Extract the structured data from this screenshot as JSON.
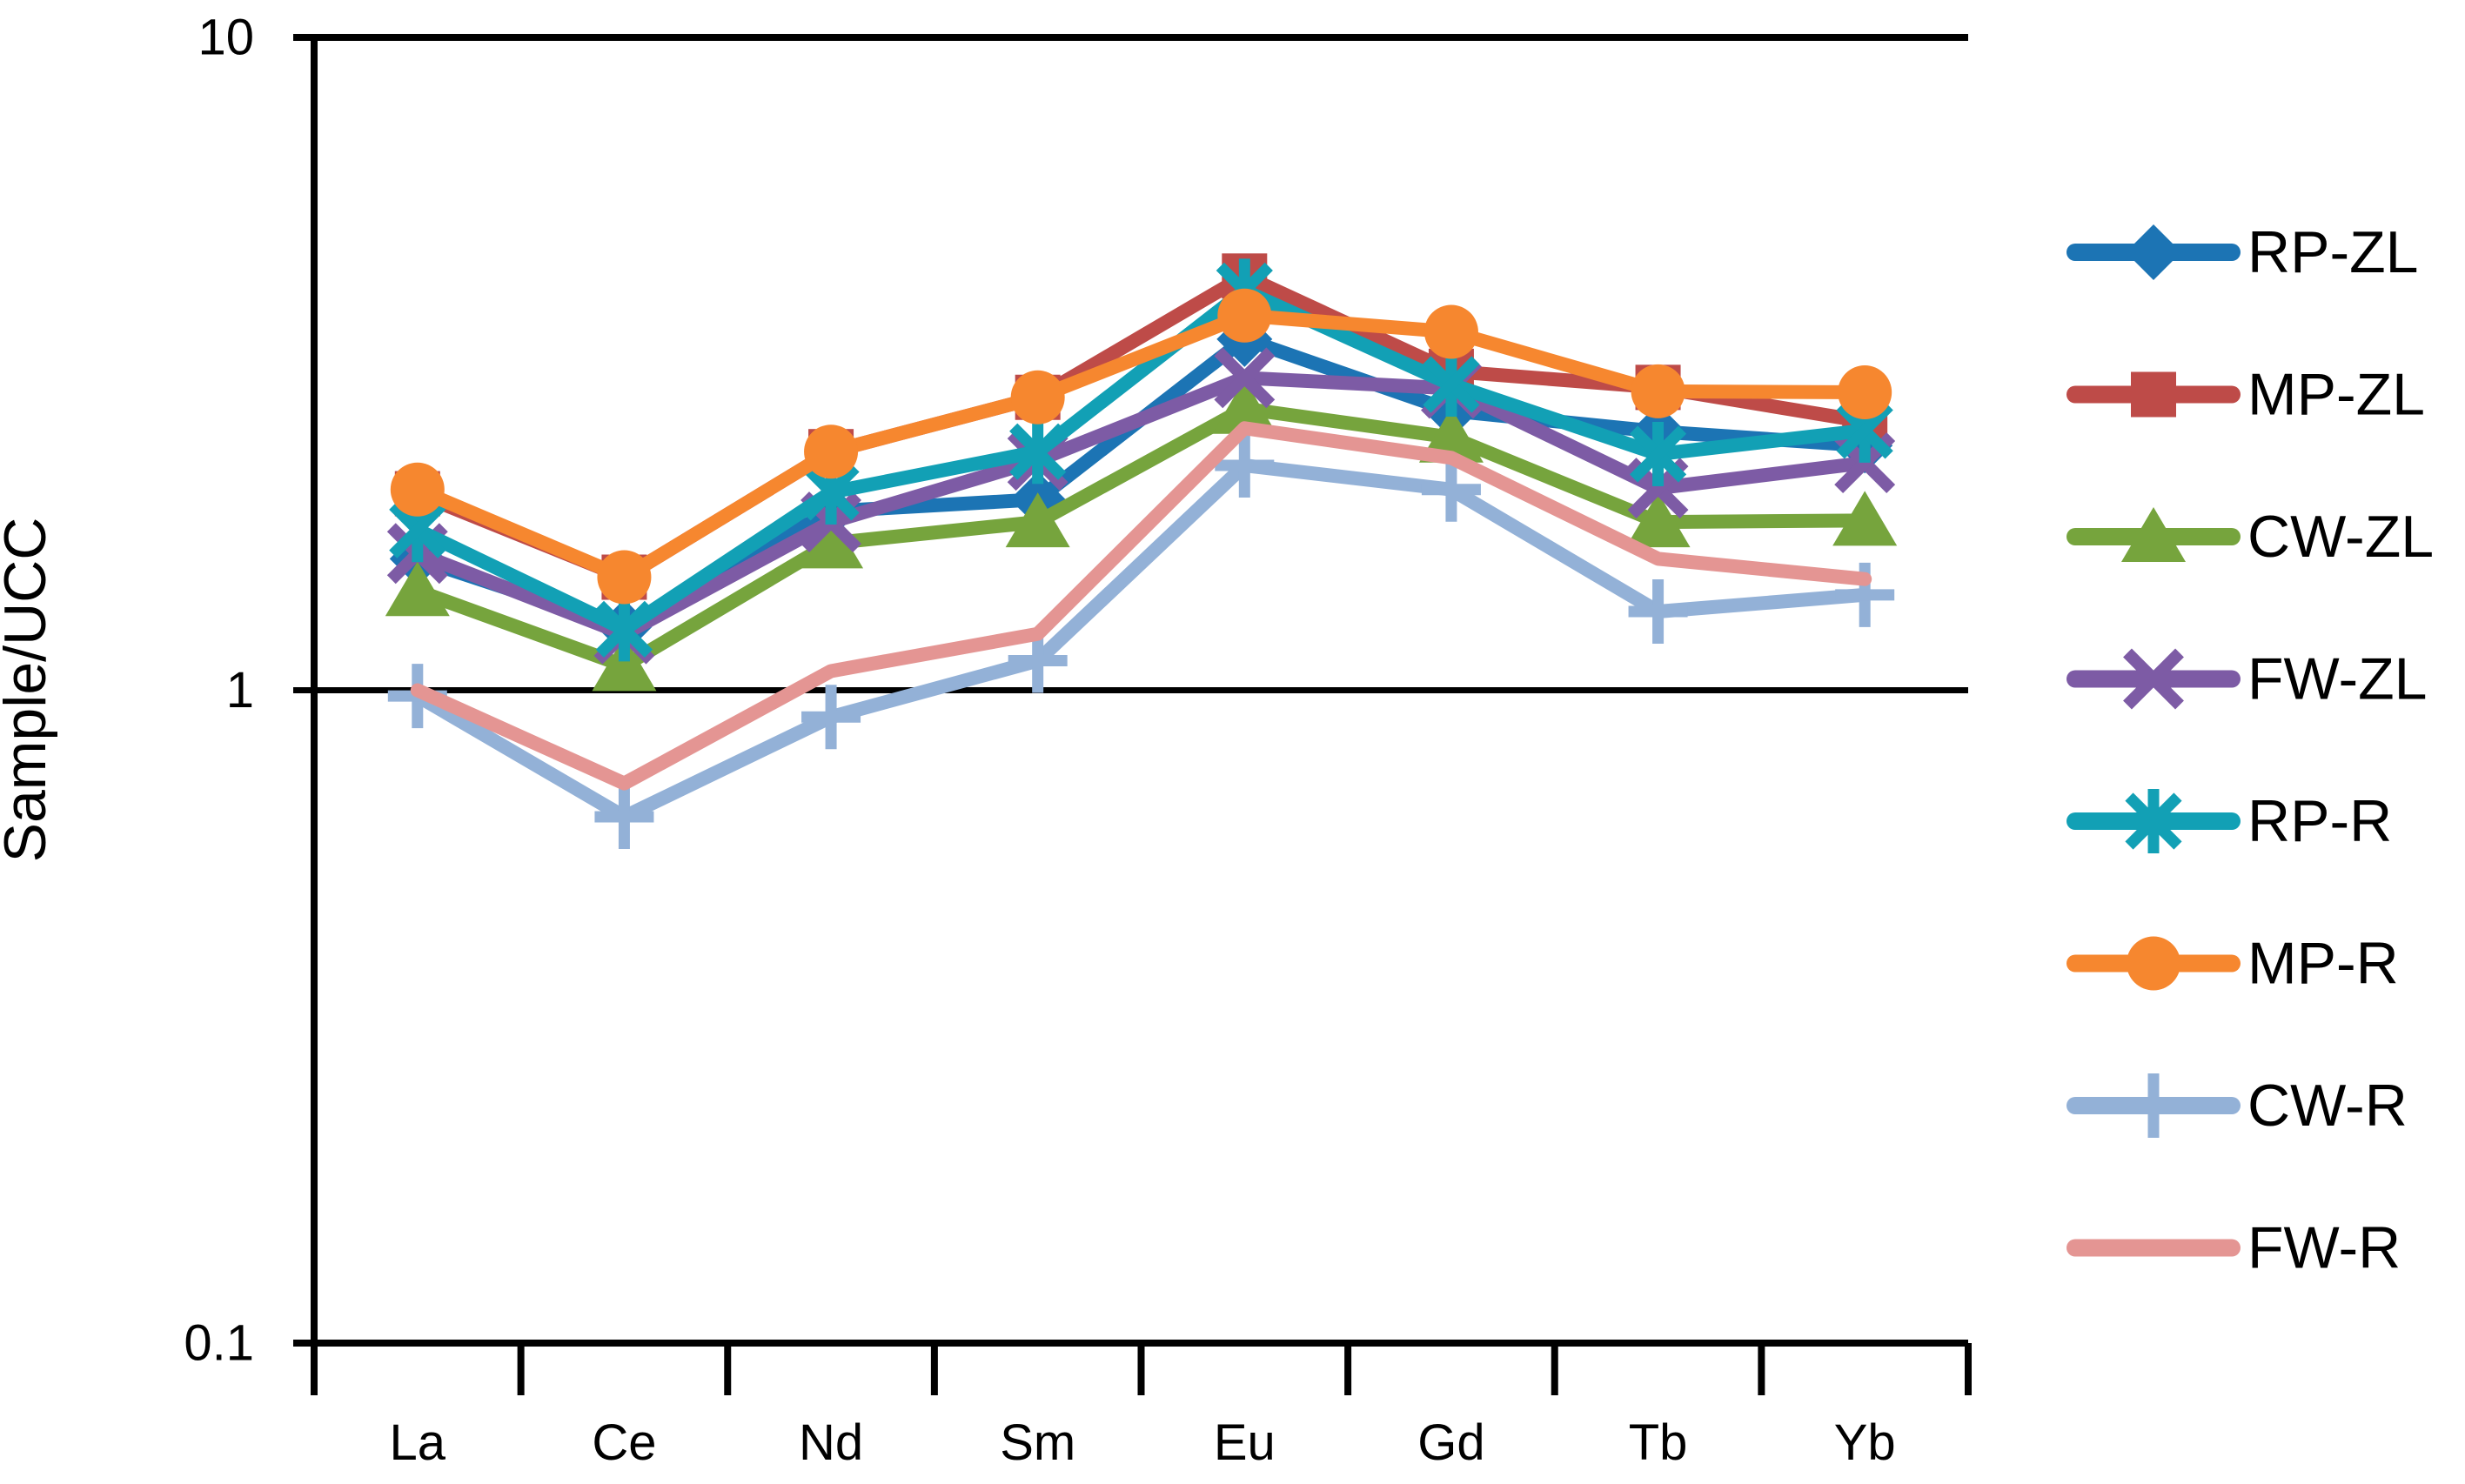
{
  "figure": {
    "background": "#FFFFFF",
    "text_color": "#000000",
    "axis_color": "#000000"
  },
  "chart_data": {
    "type": "line",
    "title": "",
    "xlabel": "",
    "ylabel": "Sample/UCC",
    "yscale": "log",
    "ylim": [
      0.1,
      10
    ],
    "y_ticks": [
      {
        "label": "10",
        "value": 10
      },
      {
        "label": "1",
        "value": 1
      },
      {
        "label": "0.1",
        "value": 0.1
      }
    ],
    "horizontal_lines_at": [
      10,
      1
    ],
    "x_categories": [
      "La",
      "Ce",
      "Nd",
      "Sm",
      "Eu",
      "Gd",
      "Tb",
      "Yb"
    ],
    "legend_position": "right",
    "series": [
      {
        "name": "RP-ZL",
        "color": "#1C74B4",
        "marker": "diamond",
        "values": [
          1.59,
          1.25,
          1.88,
          1.96,
          3.45,
          2.68,
          2.49,
          2.37
        ]
      },
      {
        "name": "MP-ZL",
        "color": "#BE4B48",
        "marker": "square",
        "values": [
          2.0,
          1.49,
          2.32,
          2.81,
          4.31,
          3.08,
          2.91,
          2.58
        ]
      },
      {
        "name": "CW-ZL",
        "color": "#76A43D",
        "marker": "triangle",
        "values": [
          1.42,
          1.09,
          1.68,
          1.81,
          2.7,
          2.44,
          1.81,
          1.82
        ]
      },
      {
        "name": "FW-ZL",
        "color": "#7D5BA5",
        "marker": "x",
        "values": [
          1.62,
          1.22,
          1.81,
          2.25,
          3.01,
          2.9,
          2.04,
          2.23
        ]
      },
      {
        "name": "RP-R",
        "color": "#12A0B5",
        "marker": "asterisk",
        "values": [
          1.76,
          1.24,
          2.01,
          2.32,
          4.09,
          2.94,
          2.3,
          2.5
        ]
      },
      {
        "name": "MP-R",
        "color": "#F6872F",
        "marker": "circle",
        "values": [
          2.03,
          1.49,
          2.32,
          2.81,
          3.75,
          3.54,
          2.87,
          2.86
        ]
      },
      {
        "name": "CW-R",
        "color": "#93B1D7",
        "marker": "plus",
        "values": [
          0.98,
          0.64,
          0.91,
          1.11,
          2.21,
          2.03,
          1.32,
          1.4
        ]
      },
      {
        "name": "FW-R",
        "color": "#E49593",
        "marker": "none",
        "values": [
          1.0,
          0.72,
          1.07,
          1.22,
          2.52,
          2.27,
          1.59,
          1.48
        ]
      }
    ]
  }
}
